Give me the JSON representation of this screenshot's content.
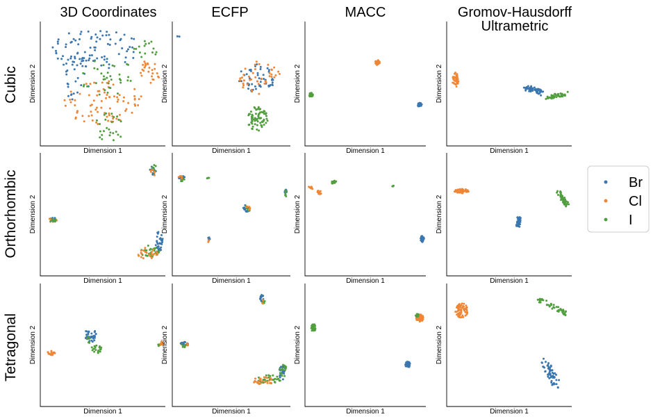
{
  "columns": [
    "3D Coordinates",
    "ECFP",
    "MACC",
    "Gromov-Hausdorff\nUltrametric"
  ],
  "rows": [
    "Cubic",
    "Orthorhombic",
    "Tetragonal"
  ],
  "colors": {
    "Br": "#3b76af",
    "Cl": "#ef8636",
    "I": "#519e3e"
  },
  "legend": [
    "Br",
    "Cl",
    "I"
  ],
  "chart_data": {
    "type": "scatter",
    "xlabel": "Dimension 1",
    "ylabel": "Dimension 2",
    "ticks": "none",
    "panels": [
      {
        "row": "Cubic",
        "column": "3D Coordinates",
        "clusters": [
          {
            "series": "Br",
            "shape": "ellipse",
            "cx": 0.45,
            "cy": 0.78,
            "rx": 0.36,
            "ry": 0.16,
            "n": 90
          },
          {
            "series": "Br",
            "shape": "ellipse",
            "cx": 0.28,
            "cy": 0.55,
            "rx": 0.12,
            "ry": 0.18,
            "n": 25
          },
          {
            "series": "Cl",
            "shape": "ellipse",
            "cx": 0.5,
            "cy": 0.35,
            "rx": 0.32,
            "ry": 0.18,
            "n": 80
          },
          {
            "series": "Cl",
            "shape": "ellipse",
            "cx": 0.88,
            "cy": 0.6,
            "rx": 0.08,
            "ry": 0.1,
            "n": 25
          },
          {
            "series": "I",
            "shape": "ellipse",
            "cx": 0.55,
            "cy": 0.55,
            "rx": 0.25,
            "ry": 0.15,
            "n": 35
          },
          {
            "series": "I",
            "shape": "ellipse",
            "cx": 0.55,
            "cy": 0.15,
            "rx": 0.12,
            "ry": 0.12,
            "n": 25
          },
          {
            "series": "I",
            "shape": "ellipse",
            "cx": 0.85,
            "cy": 0.78,
            "rx": 0.1,
            "ry": 0.08,
            "n": 15
          }
        ]
      },
      {
        "row": "Cubic",
        "column": "ECFP",
        "clusters": [
          {
            "series": "Br",
            "shape": "ellipse",
            "cx": 0.05,
            "cy": 0.88,
            "rx": 0.01,
            "ry": 0.01,
            "n": 2
          },
          {
            "series": "Br",
            "shape": "ellipse",
            "cx": 0.72,
            "cy": 0.55,
            "rx": 0.16,
            "ry": 0.12,
            "n": 50
          },
          {
            "series": "Cl",
            "shape": "ellipse",
            "cx": 0.74,
            "cy": 0.55,
            "rx": 0.18,
            "ry": 0.14,
            "n": 40
          },
          {
            "series": "I",
            "shape": "ellipse",
            "cx": 0.72,
            "cy": 0.22,
            "rx": 0.09,
            "ry": 0.1,
            "n": 70
          }
        ]
      },
      {
        "row": "Cubic",
        "column": "MACC",
        "clusters": [
          {
            "series": "Cl",
            "shape": "ellipse",
            "cx": 0.6,
            "cy": 0.67,
            "rx": 0.02,
            "ry": 0.02,
            "n": 30
          },
          {
            "series": "I",
            "shape": "ellipse",
            "cx": 0.05,
            "cy": 0.41,
            "rx": 0.017,
            "ry": 0.017,
            "n": 25
          },
          {
            "series": "Br",
            "shape": "ellipse",
            "cx": 0.95,
            "cy": 0.33,
            "rx": 0.017,
            "ry": 0.017,
            "n": 25
          }
        ]
      },
      {
        "row": "Cubic",
        "column": "Gromov-Hausdorff\nUltrametric",
        "clusters": [
          {
            "series": "Cl",
            "shape": "ellipse",
            "cx": 0.07,
            "cy": 0.53,
            "rx": 0.025,
            "ry": 0.06,
            "n": 45
          },
          {
            "series": "Br",
            "shape": "line",
            "x1": 0.63,
            "y1": 0.47,
            "x2": 0.76,
            "y2": 0.43,
            "w": 0.025,
            "n": 50
          },
          {
            "series": "I",
            "shape": "line",
            "x1": 0.8,
            "y1": 0.39,
            "x2": 0.96,
            "y2": 0.42,
            "w": 0.018,
            "n": 45
          }
        ]
      },
      {
        "row": "Orthorhombic",
        "column": "3D Coordinates",
        "clusters": [
          {
            "series": "Br",
            "shape": "ellipse",
            "cx": 0.1,
            "cy": 0.46,
            "rx": 0.03,
            "ry": 0.015,
            "n": 15
          },
          {
            "series": "Cl",
            "shape": "ellipse",
            "cx": 0.1,
            "cy": 0.45,
            "rx": 0.035,
            "ry": 0.02,
            "n": 12
          },
          {
            "series": "I",
            "shape": "ellipse",
            "cx": 0.11,
            "cy": 0.45,
            "rx": 0.03,
            "ry": 0.015,
            "n": 8
          },
          {
            "series": "Br",
            "shape": "ellipse",
            "cx": 0.9,
            "cy": 0.85,
            "rx": 0.025,
            "ry": 0.04,
            "n": 12
          },
          {
            "series": "I",
            "shape": "ellipse",
            "cx": 0.91,
            "cy": 0.87,
            "rx": 0.02,
            "ry": 0.035,
            "n": 8
          },
          {
            "series": "Cl",
            "shape": "ellipse",
            "cx": 0.9,
            "cy": 0.84,
            "rx": 0.02,
            "ry": 0.03,
            "n": 6
          },
          {
            "series": "I",
            "shape": "ellipse",
            "cx": 0.88,
            "cy": 0.2,
            "rx": 0.08,
            "ry": 0.05,
            "n": 35
          },
          {
            "series": "Cl",
            "shape": "ellipse",
            "cx": 0.86,
            "cy": 0.18,
            "rx": 0.08,
            "ry": 0.05,
            "n": 25
          },
          {
            "series": "Br",
            "shape": "ellipse",
            "cx": 0.95,
            "cy": 0.28,
            "rx": 0.03,
            "ry": 0.08,
            "n": 30
          }
        ]
      },
      {
        "row": "Orthorhombic",
        "column": "ECFP",
        "clusters": [
          {
            "series": "Br",
            "shape": "ellipse",
            "cx": 0.08,
            "cy": 0.8,
            "rx": 0.035,
            "ry": 0.015,
            "n": 15
          },
          {
            "series": "I",
            "shape": "ellipse",
            "cx": 0.08,
            "cy": 0.79,
            "rx": 0.03,
            "ry": 0.02,
            "n": 12
          },
          {
            "series": "Cl",
            "shape": "ellipse",
            "cx": 0.07,
            "cy": 0.8,
            "rx": 0.02,
            "ry": 0.015,
            "n": 4
          },
          {
            "series": "I",
            "shape": "ellipse",
            "cx": 0.3,
            "cy": 0.8,
            "rx": 0.012,
            "ry": 0.01,
            "n": 4
          },
          {
            "series": "Br",
            "shape": "ellipse",
            "cx": 0.63,
            "cy": 0.55,
            "rx": 0.03,
            "ry": 0.03,
            "n": 15
          },
          {
            "series": "I",
            "shape": "ellipse",
            "cx": 0.64,
            "cy": 0.55,
            "rx": 0.02,
            "ry": 0.03,
            "n": 8
          },
          {
            "series": "Cl",
            "shape": "ellipse",
            "cx": 0.65,
            "cy": 0.56,
            "rx": 0.02,
            "ry": 0.025,
            "n": 6
          },
          {
            "series": "Br",
            "shape": "ellipse",
            "cx": 0.96,
            "cy": 0.68,
            "rx": 0.01,
            "ry": 0.025,
            "n": 8
          },
          {
            "series": "I",
            "shape": "ellipse",
            "cx": 0.96,
            "cy": 0.67,
            "rx": 0.01,
            "ry": 0.025,
            "n": 8
          },
          {
            "series": "Br",
            "shape": "ellipse",
            "cx": 0.31,
            "cy": 0.3,
            "rx": 0.008,
            "ry": 0.02,
            "n": 5
          },
          {
            "series": "Cl",
            "shape": "ellipse",
            "cx": 0.31,
            "cy": 0.29,
            "rx": 0.008,
            "ry": 0.02,
            "n": 3
          }
        ]
      },
      {
        "row": "Orthorhombic",
        "column": "MACC",
        "clusters": [
          {
            "series": "Cl",
            "shape": "ellipse",
            "cx": 0.05,
            "cy": 0.72,
            "rx": 0.02,
            "ry": 0.015,
            "n": 10
          },
          {
            "series": "Cl",
            "shape": "ellipse",
            "cx": 0.12,
            "cy": 0.68,
            "rx": 0.018,
            "ry": 0.018,
            "n": 15
          },
          {
            "series": "I",
            "shape": "ellipse",
            "cx": 0.24,
            "cy": 0.76,
            "rx": 0.022,
            "ry": 0.015,
            "n": 15
          },
          {
            "series": "I",
            "shape": "ellipse",
            "cx": 0.73,
            "cy": 0.73,
            "rx": 0.008,
            "ry": 0.008,
            "n": 4
          },
          {
            "series": "Br",
            "shape": "ellipse",
            "cx": 0.97,
            "cy": 0.3,
            "rx": 0.015,
            "ry": 0.025,
            "n": 25
          }
        ]
      },
      {
        "row": "Orthorhombic",
        "column": "Gromov-Hausdorff\nUltrametric",
        "clusters": [
          {
            "series": "Cl",
            "shape": "ellipse",
            "cx": 0.12,
            "cy": 0.69,
            "rx": 0.06,
            "ry": 0.018,
            "n": 50
          },
          {
            "series": "Br",
            "shape": "line",
            "x1": 0.58,
            "y1": 0.48,
            "x2": 0.57,
            "y2": 0.4,
            "w": 0.015,
            "n": 40
          },
          {
            "series": "I",
            "shape": "line",
            "x1": 0.89,
            "y1": 0.68,
            "x2": 0.96,
            "y2": 0.58,
            "w": 0.02,
            "n": 45
          }
        ]
      },
      {
        "row": "Tetragonal",
        "column": "3D Coordinates",
        "clusters": [
          {
            "series": "Cl",
            "shape": "ellipse",
            "cx": 0.09,
            "cy": 0.44,
            "rx": 0.03,
            "ry": 0.025,
            "n": 18
          },
          {
            "series": "Br",
            "shape": "ellipse",
            "cx": 0.4,
            "cy": 0.58,
            "rx": 0.05,
            "ry": 0.06,
            "n": 35
          },
          {
            "series": "I",
            "shape": "ellipse",
            "cx": 0.45,
            "cy": 0.47,
            "rx": 0.04,
            "ry": 0.04,
            "n": 20
          },
          {
            "series": "I",
            "shape": "ellipse",
            "cx": 0.38,
            "cy": 0.54,
            "rx": 0.02,
            "ry": 0.03,
            "n": 6
          },
          {
            "series": "Cl",
            "shape": "ellipse",
            "cx": 0.97,
            "cy": 0.51,
            "rx": 0.015,
            "ry": 0.02,
            "n": 10
          },
          {
            "series": "I",
            "shape": "ellipse",
            "cx": 0.95,
            "cy": 0.5,
            "rx": 0.01,
            "ry": 0.01,
            "n": 3
          }
        ]
      },
      {
        "row": "Tetragonal",
        "column": "ECFP",
        "clusters": [
          {
            "series": "Br",
            "shape": "ellipse",
            "cx": 0.1,
            "cy": 0.51,
            "rx": 0.035,
            "ry": 0.015,
            "n": 15
          },
          {
            "series": "I",
            "shape": "ellipse",
            "cx": 0.1,
            "cy": 0.5,
            "rx": 0.03,
            "ry": 0.02,
            "n": 10
          },
          {
            "series": "Cl",
            "shape": "ellipse",
            "cx": 0.13,
            "cy": 0.5,
            "rx": 0.015,
            "ry": 0.015,
            "n": 3
          },
          {
            "series": "Br",
            "shape": "ellipse",
            "cx": 0.76,
            "cy": 0.87,
            "rx": 0.02,
            "ry": 0.04,
            "n": 12
          },
          {
            "series": "I",
            "shape": "ellipse",
            "cx": 0.77,
            "cy": 0.85,
            "rx": 0.015,
            "ry": 0.03,
            "n": 5
          },
          {
            "series": "Cl",
            "shape": "ellipse",
            "cx": 0.76,
            "cy": 0.85,
            "rx": 0.012,
            "ry": 0.02,
            "n": 4
          },
          {
            "series": "I",
            "shape": "ellipse",
            "cx": 0.82,
            "cy": 0.22,
            "rx": 0.1,
            "ry": 0.035,
            "n": 30
          },
          {
            "series": "Cl",
            "shape": "ellipse",
            "cx": 0.78,
            "cy": 0.21,
            "rx": 0.1,
            "ry": 0.03,
            "n": 25
          },
          {
            "series": "Br",
            "shape": "ellipse",
            "cx": 0.93,
            "cy": 0.28,
            "rx": 0.03,
            "ry": 0.07,
            "n": 25
          },
          {
            "series": "I",
            "shape": "ellipse",
            "cx": 0.94,
            "cy": 0.3,
            "rx": 0.03,
            "ry": 0.06,
            "n": 15
          }
        ]
      },
      {
        "row": "Tetragonal",
        "column": "MACC",
        "clusters": [
          {
            "series": "I",
            "shape": "ellipse",
            "cx": 0.07,
            "cy": 0.64,
            "rx": 0.02,
            "ry": 0.03,
            "n": 35
          },
          {
            "series": "Cl",
            "shape": "ellipse",
            "cx": 0.95,
            "cy": 0.72,
            "rx": 0.03,
            "ry": 0.03,
            "n": 60
          },
          {
            "series": "I",
            "shape": "ellipse",
            "cx": 0.93,
            "cy": 0.74,
            "rx": 0.015,
            "ry": 0.012,
            "n": 12
          },
          {
            "series": "Br",
            "shape": "ellipse",
            "cx": 0.85,
            "cy": 0.34,
            "rx": 0.02,
            "ry": 0.025,
            "n": 40
          }
        ]
      },
      {
        "row": "Tetragonal",
        "column": "Gromov-Hausdorff\nUltrametric",
        "clusters": [
          {
            "series": "Cl",
            "shape": "ellipse",
            "cx": 0.12,
            "cy": 0.78,
            "rx": 0.05,
            "ry": 0.06,
            "n": 60
          },
          {
            "series": "I",
            "shape": "line",
            "x1": 0.72,
            "y1": 0.88,
            "x2": 0.97,
            "y2": 0.75,
            "w": 0.02,
            "n": 50
          },
          {
            "series": "Br",
            "shape": "line",
            "x1": 0.78,
            "y1": 0.37,
            "x2": 0.88,
            "y2": 0.18,
            "w": 0.035,
            "n": 60
          }
        ]
      }
    ]
  }
}
